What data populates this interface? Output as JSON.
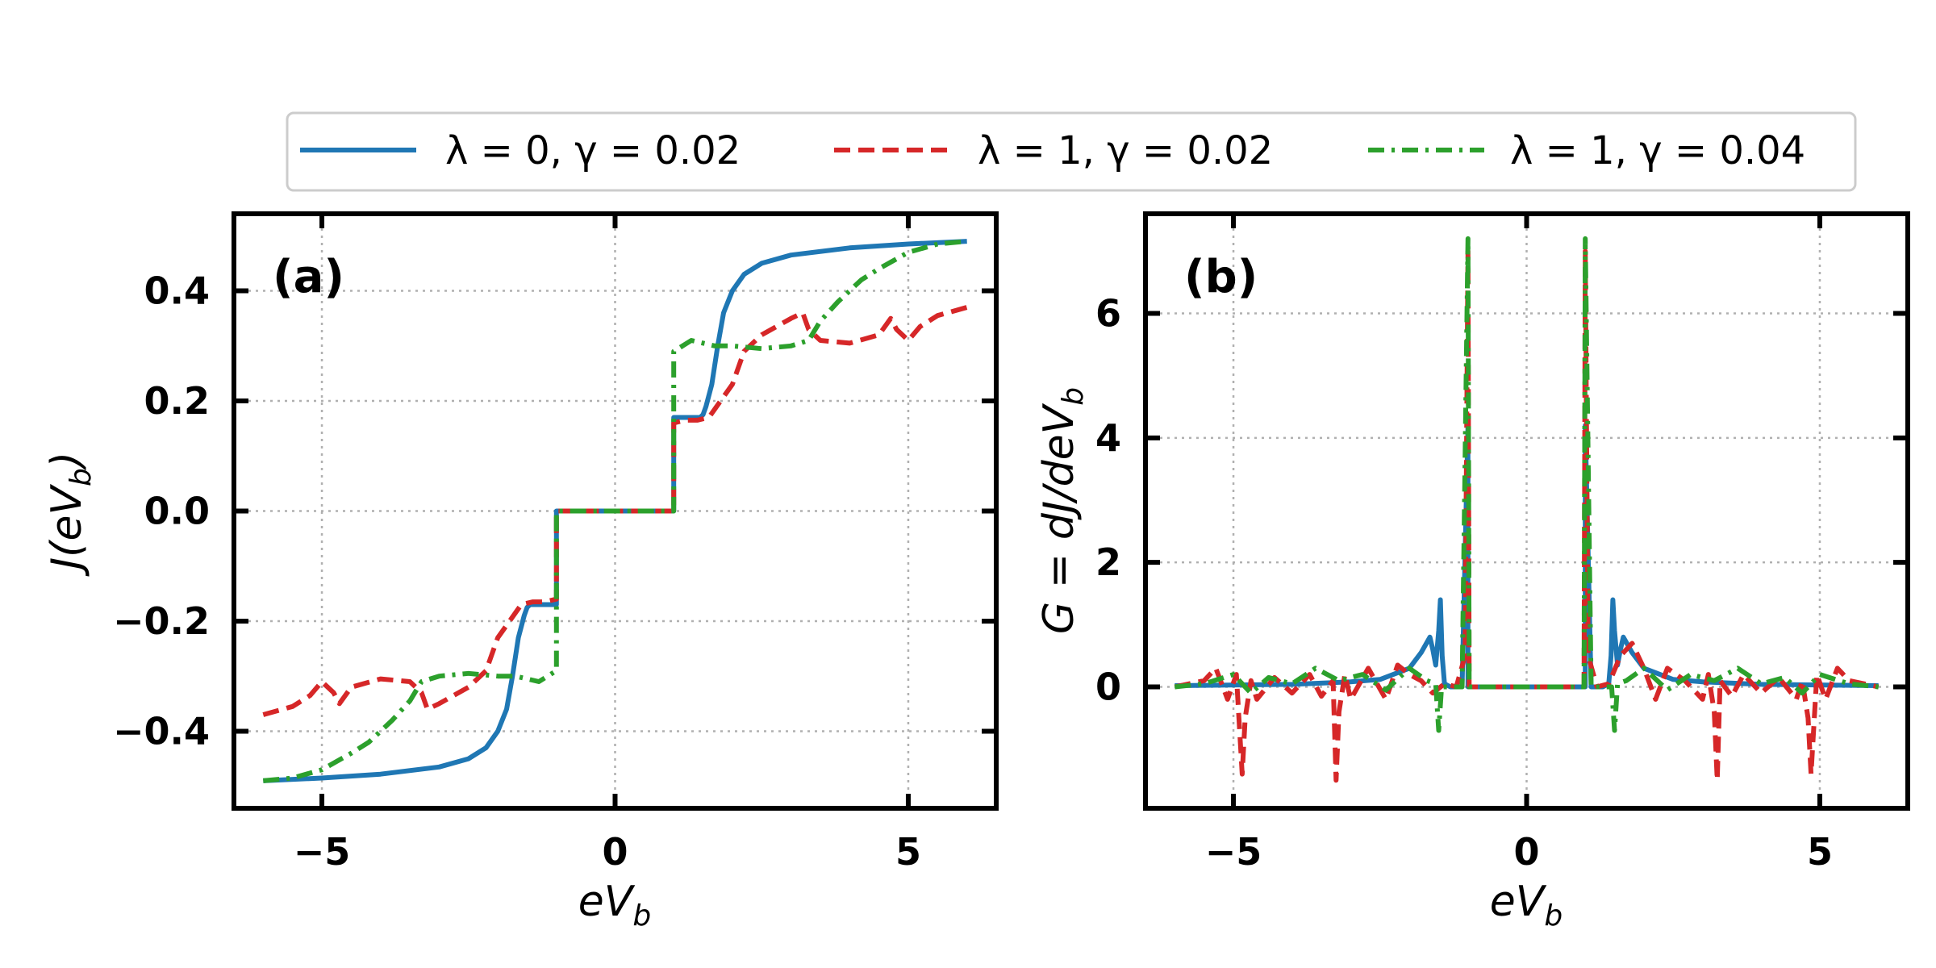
{
  "legend": [
    {
      "label": "λ = 0,  γ = 0.02",
      "color": "#1f77b4",
      "dash": "solid"
    },
    {
      "label": "λ = 1,  γ = 0.02",
      "color": "#d62728",
      "dash": "dashed"
    },
    {
      "label": "λ = 1,  γ = 0.04",
      "color": "#2ca02c",
      "dash": "dashdot"
    }
  ],
  "chart_data": [
    {
      "type": "line",
      "panel_label": "(a)",
      "xlabel": "eV_b",
      "ylabel": "J(eV_b)",
      "xlim": [
        -6.5,
        6.5
      ],
      "ylim": [
        -0.54,
        0.54
      ],
      "xticks": [
        -5,
        0,
        5
      ],
      "xtick_labels": [
        "−5",
        "0",
        "5"
      ],
      "yticks": [
        -0.4,
        -0.2,
        0.0,
        0.2,
        0.4
      ],
      "ytick_labels": [
        "−0.4",
        "−0.2",
        "0.0",
        "0.2",
        "0.4"
      ],
      "grid": true,
      "series": [
        {
          "name": "λ = 0,  γ = 0.02",
          "color": "#1f77b4",
          "dash": "solid",
          "x": [
            -6,
            -5,
            -4,
            -3,
            -2.5,
            -2.2,
            -2.0,
            -1.85,
            -1.75,
            -1.65,
            -1.55,
            -1.5,
            -1.45,
            -1.3,
            -1.1,
            -1.0,
            -1.0,
            1.0,
            1.0,
            1.1,
            1.3,
            1.45,
            1.5,
            1.55,
            1.65,
            1.75,
            1.85,
            2.0,
            2.2,
            2.5,
            3,
            4,
            5,
            6
          ],
          "y": [
            -0.49,
            -0.485,
            -0.478,
            -0.465,
            -0.45,
            -0.43,
            -0.4,
            -0.36,
            -0.3,
            -0.23,
            -0.19,
            -0.175,
            -0.17,
            -0.17,
            -0.17,
            -0.17,
            0.0,
            0.0,
            0.17,
            0.17,
            0.17,
            0.17,
            0.175,
            0.19,
            0.23,
            0.3,
            0.36,
            0.4,
            0.43,
            0.45,
            0.465,
            0.478,
            0.485,
            0.49
          ]
        },
        {
          "name": "λ = 1,  γ = 0.02",
          "color": "#d62728",
          "dash": "dashed",
          "x": [
            -6,
            -5.5,
            -5.2,
            -5.0,
            -4.8,
            -4.7,
            -4.5,
            -4.0,
            -3.5,
            -3.3,
            -3.2,
            -3.0,
            -2.5,
            -2.2,
            -2.0,
            -1.8,
            -1.6,
            -1.4,
            -1.2,
            -1.0,
            -1.0,
            1.0,
            1.0,
            1.2,
            1.4,
            1.6,
            1.8,
            2.0,
            2.2,
            2.5,
            3.0,
            3.2,
            3.3,
            3.5,
            4.0,
            4.5,
            4.7,
            4.8,
            5.0,
            5.2,
            5.5,
            6
          ],
          "y": [
            -0.37,
            -0.355,
            -0.335,
            -0.31,
            -0.33,
            -0.35,
            -0.32,
            -0.305,
            -0.31,
            -0.33,
            -0.36,
            -0.35,
            -0.32,
            -0.29,
            -0.23,
            -0.2,
            -0.17,
            -0.165,
            -0.165,
            -0.16,
            0.0,
            0.0,
            0.16,
            0.165,
            0.165,
            0.17,
            0.2,
            0.23,
            0.29,
            0.32,
            0.35,
            0.36,
            0.33,
            0.31,
            0.305,
            0.32,
            0.35,
            0.33,
            0.31,
            0.335,
            0.355,
            0.37
          ]
        },
        {
          "name": "λ = 1,  γ = 0.04",
          "color": "#2ca02c",
          "dash": "dashdot",
          "x": [
            -6,
            -5.5,
            -5.0,
            -4.5,
            -4.2,
            -4.0,
            -3.8,
            -3.5,
            -3.3,
            -3.0,
            -2.5,
            -2.0,
            -1.7,
            -1.3,
            -1.0,
            -1.0,
            1.0,
            1.0,
            1.3,
            1.7,
            2.0,
            2.5,
            3.0,
            3.3,
            3.5,
            3.8,
            4.0,
            4.2,
            4.5,
            5.0,
            5.5,
            6
          ],
          "y": [
            -0.49,
            -0.485,
            -0.47,
            -0.44,
            -0.42,
            -0.4,
            -0.38,
            -0.345,
            -0.31,
            -0.3,
            -0.295,
            -0.3,
            -0.3,
            -0.31,
            -0.29,
            0.0,
            0.0,
            0.29,
            0.31,
            0.3,
            0.3,
            0.295,
            0.3,
            0.31,
            0.345,
            0.38,
            0.4,
            0.42,
            0.44,
            0.47,
            0.485,
            0.49
          ]
        }
      ]
    },
    {
      "type": "line",
      "panel_label": "(b)",
      "xlabel": "eV_b",
      "ylabel": "G = dJ/deV_b",
      "xlim": [
        -6.5,
        6.5
      ],
      "ylim": [
        -1.95,
        7.6
      ],
      "xticks": [
        -5,
        0,
        5
      ],
      "xtick_labels": [
        "−5",
        "0",
        "5"
      ],
      "yticks": [
        0,
        2,
        4,
        6
      ],
      "ytick_labels": [
        "0",
        "2",
        "4",
        "6"
      ],
      "grid": true,
      "series": [
        {
          "name": "λ = 0,  γ = 0.02",
          "color": "#1f77b4",
          "dash": "solid",
          "x": [
            -6,
            -4,
            -3,
            -2.5,
            -2.0,
            -1.8,
            -1.65,
            -1.6,
            -1.55,
            -1.5,
            -1.47,
            -1.44,
            -1.4,
            -1.3,
            -1.1,
            -1.0,
            -1.0,
            1.0,
            1.0,
            1.1,
            1.3,
            1.4,
            1.44,
            1.47,
            1.5,
            1.55,
            1.6,
            1.65,
            1.8,
            2.0,
            2.5,
            3,
            4,
            6
          ],
          "y": [
            0.02,
            0.04,
            0.08,
            0.12,
            0.3,
            0.55,
            0.8,
            0.6,
            0.35,
            0.9,
            1.4,
            0.5,
            0.05,
            0.0,
            0.0,
            4.2,
            0.0,
            0.0,
            4.2,
            0.0,
            0.0,
            0.05,
            0.5,
            1.4,
            0.9,
            0.35,
            0.6,
            0.8,
            0.55,
            0.3,
            0.12,
            0.08,
            0.04,
            0.02
          ]
        },
        {
          "name": "λ = 1,  γ = 0.02",
          "color": "#d62728",
          "dash": "dashed",
          "x": [
            -6,
            -5.5,
            -5.3,
            -5.1,
            -4.95,
            -4.85,
            -4.8,
            -4.7,
            -4.6,
            -4.3,
            -4.0,
            -3.7,
            -3.5,
            -3.3,
            -3.25,
            -3.2,
            -3.1,
            -3.0,
            -2.7,
            -2.4,
            -2.2,
            -2.0,
            -1.8,
            -1.6,
            -1.4,
            -1.2,
            -1.05,
            -1.0,
            -0.98,
            0.98,
            1.0,
            1.05,
            1.2,
            1.4,
            1.6,
            1.8,
            2.0,
            2.2,
            2.4,
            2.7,
            3.0,
            3.1,
            3.2,
            3.25,
            3.3,
            3.5,
            3.7,
            4.0,
            4.3,
            4.6,
            4.7,
            4.8,
            4.85,
            4.95,
            5.1,
            5.3,
            5.5,
            6
          ],
          "y": [
            0.0,
            0.1,
            0.3,
            -0.2,
            0.2,
            -1.4,
            -0.5,
            0.1,
            -0.2,
            0.15,
            -0.1,
            0.2,
            -0.15,
            0.1,
            -1.5,
            -0.4,
            0.2,
            -0.2,
            0.3,
            -0.2,
            0.35,
            0.2,
            0.1,
            -0.1,
            0.05,
            0.0,
            0.5,
            7.0,
            0.0,
            0.0,
            7.0,
            0.5,
            0.0,
            0.05,
            0.5,
            0.7,
            0.3,
            -0.2,
            0.3,
            0.1,
            -0.2,
            0.2,
            -0.4,
            -1.5,
            0.1,
            -0.15,
            0.2,
            -0.1,
            0.15,
            -0.2,
            0.1,
            -0.5,
            -1.4,
            0.2,
            -0.2,
            0.3,
            0.1,
            0.0
          ]
        },
        {
          "name": "λ = 1,  γ = 0.04",
          "color": "#2ca02c",
          "dash": "dashdot",
          "x": [
            -6,
            -5.5,
            -5.0,
            -4.7,
            -4.4,
            -4.0,
            -3.6,
            -3.2,
            -2.8,
            -2.4,
            -2.0,
            -1.7,
            -1.55,
            -1.5,
            -1.45,
            -1.3,
            -1.1,
            -1.0,
            -0.98,
            0.98,
            1.0,
            1.1,
            1.3,
            1.45,
            1.5,
            1.55,
            1.7,
            2.0,
            2.4,
            2.8,
            3.2,
            3.6,
            4.0,
            4.4,
            4.7,
            5.0,
            5.5,
            6
          ],
          "y": [
            0.0,
            0.05,
            0.2,
            -0.1,
            0.15,
            0.05,
            0.3,
            0.1,
            0.2,
            -0.05,
            0.3,
            0.1,
            0.05,
            -0.7,
            0.0,
            0.0,
            0.0,
            7.2,
            0.0,
            0.0,
            7.2,
            0.0,
            0.0,
            0.0,
            -0.7,
            0.05,
            0.1,
            0.3,
            -0.05,
            0.2,
            0.1,
            0.3,
            0.05,
            0.15,
            -0.1,
            0.2,
            0.05,
            0.0
          ]
        }
      ]
    }
  ]
}
